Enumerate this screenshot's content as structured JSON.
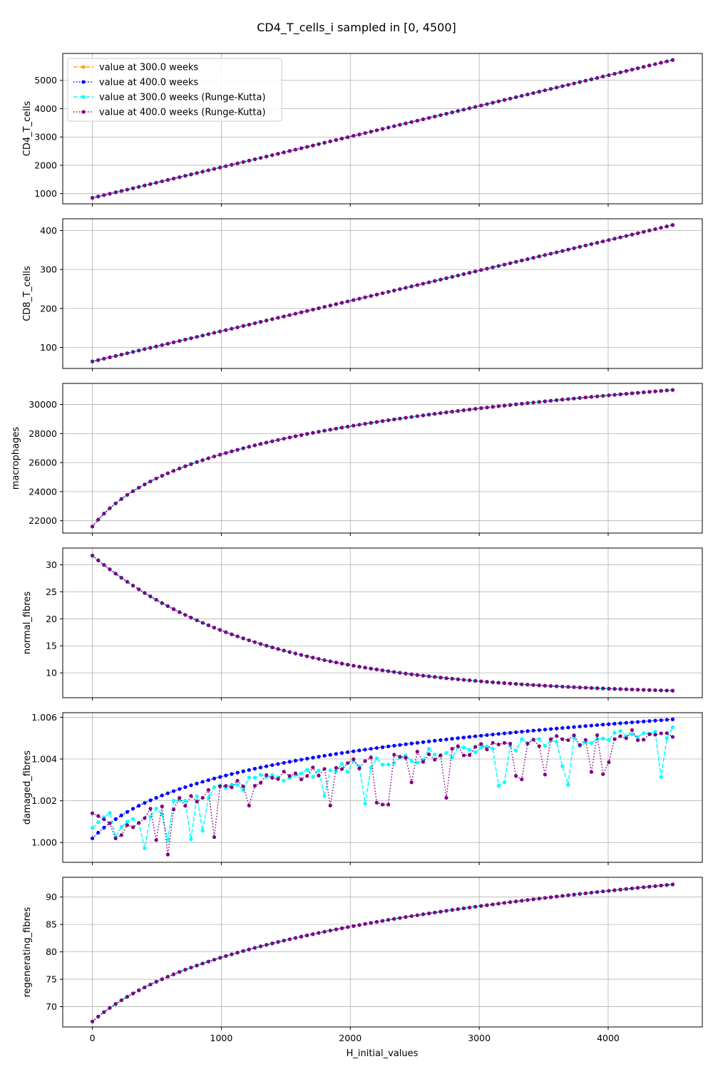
{
  "title": "CD4_T_cells_i sampled in [0, 4500]",
  "xlabel": "H_initial_values",
  "legend": {
    "placement": "upper-left",
    "entries": [
      {
        "label": "value at 300.0 weeks",
        "color": "#ffa500",
        "linestyle": "dashed",
        "marker": "circle"
      },
      {
        "label": "value at 400.0 weeks",
        "color": "#0000ff",
        "linestyle": "dotted",
        "marker": "circle"
      },
      {
        "label": "value at 300.0 weeks (Runge-Kutta)",
        "color": "#00ffff",
        "linestyle": "dashed",
        "marker": "circle"
      },
      {
        "label": "value at 400.0 weeks (Runge-Kutta)",
        "color": "#800080",
        "linestyle": "dotted",
        "marker": "circle"
      }
    ]
  },
  "chart_data": {
    "type": "line",
    "grid": true,
    "x": {
      "start": 0,
      "stop": 4500,
      "samples": 101,
      "xlim": [
        -230,
        4730
      ],
      "ticks": [
        0,
        1000,
        2000,
        3000,
        4000
      ]
    },
    "subplots": [
      {
        "ylabel": "CD4_T_cells",
        "ylim": [
          640,
          5950
        ],
        "yticks": [
          1000,
          2000,
          3000,
          4000,
          5000
        ],
        "model": "linear",
        "params": {
          "y0": 850,
          "y1": 5720
        }
      },
      {
        "ylabel": "CD8_T_cells",
        "ylim": [
          46,
          430
        ],
        "yticks": [
          100,
          200,
          300,
          400
        ],
        "model": "linear",
        "params": {
          "y0": 64,
          "y1": 414
        }
      },
      {
        "ylabel": "macrophages",
        "ylim": [
          21150,
          31450
        ],
        "yticks": [
          22000,
          24000,
          26000,
          28000,
          30000
        ],
        "model": "log",
        "params": {
          "y0": 21600,
          "y1": 31000,
          "k": 300
        }
      },
      {
        "ylabel": "normal_fibres",
        "ylim": [
          5.4,
          33.1
        ],
        "yticks": [
          10,
          15,
          20,
          25,
          30
        ],
        "model": "decay",
        "params": {
          "y0": 31.7,
          "y1": 6.7,
          "k": 1300
        }
      },
      {
        "ylabel": "damaged_fibres",
        "ylim": [
          0.99905,
          1.00622
        ],
        "yticks": [
          1.0,
          1.002,
          1.004,
          1.006
        ],
        "tick_format": 3,
        "model": "saturating",
        "params": {
          "y0": 1.0002,
          "y1": 1.0059,
          "k": 1000
        },
        "noisy": true
      },
      {
        "ylabel": "regenerating_fibres",
        "ylim": [
          66.3,
          93.6
        ],
        "yticks": [
          70,
          75,
          80,
          85,
          90
        ],
        "model": "log",
        "params": {
          "y0": 67.3,
          "y1": 92.3,
          "k": 550
        }
      }
    ]
  }
}
